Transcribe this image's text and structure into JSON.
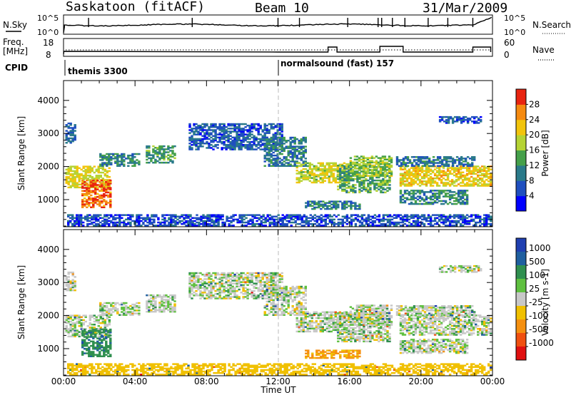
{
  "header": {
    "station": "Saskatoon (fitACF)",
    "beam": "Beam 10",
    "date": "31/Mar/2009"
  },
  "status_panel": {
    "left_label_top": "N.Sky",
    "left_tick_top": "10^5",
    "left_tick_bottom": "10^0",
    "right_label": "N.Search",
    "right_tick_top": "10^5",
    "right_tick_bottom": "10^0"
  },
  "freq_panel": {
    "left_label_line1": "Freq.",
    "left_label_line2": "[MHz]",
    "left_tick_top": "18",
    "left_tick_bottom": "8",
    "right_label": "Nave",
    "right_tick_top": "60",
    "right_tick_bottom": "0"
  },
  "cpid": {
    "label": "CPID",
    "modes": [
      {
        "name": "themis 3300",
        "start_hour": 0
      },
      {
        "name": "normalsound (fast) 157",
        "start_hour": 12
      }
    ]
  },
  "x_axis": {
    "label": "Time UT",
    "ticks": [
      "00:00",
      "04:00",
      "08:00",
      "12:00",
      "16:00",
      "20:00",
      "00:00"
    ],
    "range_hours": [
      0,
      24
    ]
  },
  "y_axis": {
    "label": "Slant Range [km]",
    "ticks": [
      "1000",
      "2000",
      "3000",
      "4000"
    ],
    "range_km": [
      180,
      4600
    ]
  },
  "power_colorbar": {
    "label": "Power [dB]",
    "ticks": [
      "4",
      "8",
      "12",
      "16",
      "20",
      "24",
      "28"
    ],
    "colors": [
      "#0000ff",
      "#1f4fbf",
      "#2a7a8a",
      "#45a04a",
      "#b5d334",
      "#f2c40c",
      "#f58a10",
      "#e82410"
    ]
  },
  "velocity_colorbar": {
    "label": "Velocity [m s-1]",
    "ticks": [
      "1000",
      "500",
      "100",
      "25",
      "-25",
      "-100",
      "-500",
      "-1000"
    ],
    "colors": [
      "#1f3fb0",
      "#1f5f9f",
      "#2f8f4f",
      "#5fc040",
      "#c8c8c8",
      "#f0c000",
      "#f59010",
      "#f05010",
      "#e01010"
    ]
  },
  "chart_data": [
    {
      "type": "heatmap",
      "title": "Power",
      "xlabel": "Time UT",
      "ylabel": "Slant Range [km]",
      "xlim": [
        0,
        24
      ],
      "ylim": [
        180,
        4600
      ],
      "blobs": [
        {
          "t0": 0.1,
          "t1": 2.6,
          "r0": 1350,
          "r1": 2000,
          "level": 20
        },
        {
          "t0": 1.0,
          "t1": 2.6,
          "r0": 750,
          "r1": 1600,
          "level": 27
        },
        {
          "t0": 0.1,
          "t1": 0.6,
          "r0": 2700,
          "r1": 3300,
          "level": 8
        },
        {
          "t0": 2.0,
          "t1": 4.2,
          "r0": 2000,
          "r1": 2400,
          "level": 11
        },
        {
          "t0": 4.6,
          "t1": 6.2,
          "r0": 2100,
          "r1": 2600,
          "level": 13
        },
        {
          "t0": 7.0,
          "t1": 12.2,
          "r0": 2500,
          "r1": 3300,
          "level": 7
        },
        {
          "t0": 11.2,
          "t1": 13.5,
          "r0": 2000,
          "r1": 2900,
          "level": 10
        },
        {
          "t0": 13.0,
          "t1": 15.8,
          "r0": 1500,
          "r1": 2100,
          "level": 19
        },
        {
          "t0": 15.3,
          "t1": 18.3,
          "r0": 1200,
          "r1": 2100,
          "level": 14
        },
        {
          "t0": 16.0,
          "t1": 18.3,
          "r0": 1700,
          "r1": 2300,
          "level": 17
        },
        {
          "t0": 18.8,
          "t1": 23.9,
          "r0": 1400,
          "r1": 2000,
          "level": 21
        },
        {
          "t0": 18.8,
          "t1": 22.6,
          "r0": 850,
          "r1": 1300,
          "level": 11
        },
        {
          "t0": 18.6,
          "t1": 23.0,
          "r0": 2000,
          "r1": 2300,
          "level": 9
        },
        {
          "t0": 13.5,
          "t1": 16.6,
          "r0": 700,
          "r1": 950,
          "level": 10
        },
        {
          "t0": 21.0,
          "t1": 23.3,
          "r0": 3300,
          "r1": 3500,
          "level": 7
        },
        {
          "t0": 0.2,
          "t1": 23.9,
          "r0": 200,
          "r1": 550,
          "level": 6
        }
      ]
    },
    {
      "type": "heatmap",
      "title": "Velocity",
      "xlabel": "Time UT",
      "ylabel": "Slant Range [km]",
      "xlim": [
        0,
        24
      ],
      "ylim": [
        180,
        4600
      ],
      "blobs": [
        {
          "t0": 0.1,
          "t1": 2.6,
          "r0": 1350,
          "r1": 2000,
          "level": 0
        },
        {
          "t0": 1.0,
          "t1": 2.6,
          "r0": 750,
          "r1": 1600,
          "level": 80
        },
        {
          "t0": 0.1,
          "t1": 0.6,
          "r0": 2700,
          "r1": 3300,
          "level": 0
        },
        {
          "t0": 2.0,
          "t1": 4.2,
          "r0": 2000,
          "r1": 2400,
          "level": 0
        },
        {
          "t0": 4.6,
          "t1": 6.2,
          "r0": 2100,
          "r1": 2600,
          "level": 0
        },
        {
          "t0": 7.0,
          "t1": 12.2,
          "r0": 2500,
          "r1": 3300,
          "level": 0
        },
        {
          "t0": 11.2,
          "t1": 13.5,
          "r0": 2000,
          "r1": 2900,
          "level": 0
        },
        {
          "t0": 13.0,
          "t1": 15.8,
          "r0": 1500,
          "r1": 2100,
          "level": 0
        },
        {
          "t0": 15.3,
          "t1": 18.3,
          "r0": 1200,
          "r1": 2100,
          "level": 0
        },
        {
          "t0": 16.0,
          "t1": 18.3,
          "r0": 1700,
          "r1": 2300,
          "level": 0
        },
        {
          "t0": 18.8,
          "t1": 23.9,
          "r0": 1400,
          "r1": 2000,
          "level": 0
        },
        {
          "t0": 18.8,
          "t1": 22.6,
          "r0": 850,
          "r1": 1300,
          "level": 0
        },
        {
          "t0": 18.6,
          "t1": 23.0,
          "r0": 2000,
          "r1": 2300,
          "level": 0
        },
        {
          "t0": 13.5,
          "t1": 16.6,
          "r0": 700,
          "r1": 950,
          "level": -110
        },
        {
          "t0": 21.0,
          "t1": 23.3,
          "r0": 3300,
          "r1": 3500,
          "level": 0
        },
        {
          "t0": 0.2,
          "t1": 23.9,
          "r0": 200,
          "r1": 550,
          "level": -60
        }
      ]
    }
  ]
}
